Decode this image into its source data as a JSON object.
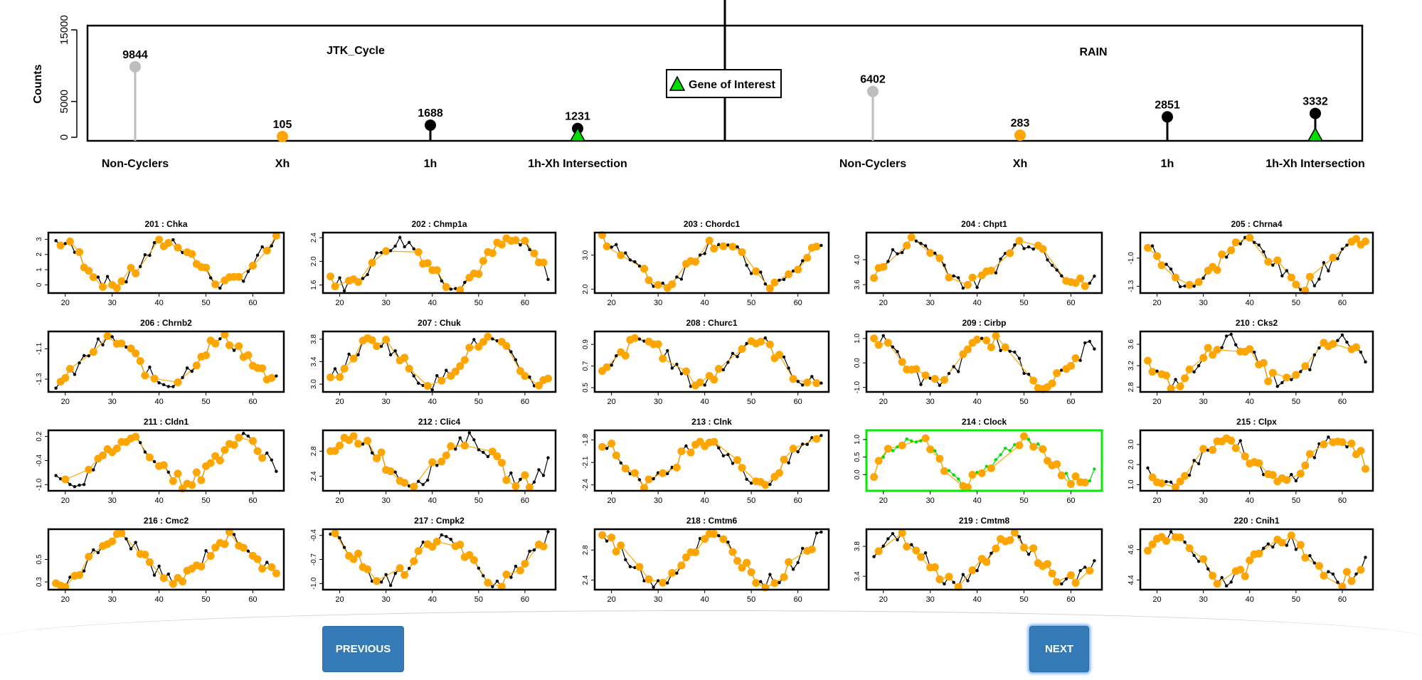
{
  "summary": {
    "ylabel": "Counts",
    "yticks": [
      0,
      5000,
      15000
    ],
    "ymax": 17000,
    "legend_label": "Gene of Interest",
    "panels": [
      {
        "title": "JTK_Cycle",
        "categories": [
          "Non-Cyclers",
          "Xh",
          "1h",
          "1h-Xh Intersection"
        ],
        "values": [
          9844,
          105,
          1688,
          1231
        ],
        "marker_colors": [
          "#bebebe",
          "#ffa500",
          "#000000",
          "#000000"
        ],
        "gene_of_interest_in": "1h-Xh Intersection"
      },
      {
        "title": "RAIN",
        "categories": [
          "Non-Cyclers",
          "Xh",
          "1h",
          "1h-Xh Intersection"
        ],
        "values": [
          6402,
          283,
          2851,
          3332
        ],
        "marker_colors": [
          "#bebebe",
          "#ffa500",
          "#000000",
          "#000000"
        ],
        "gene_of_interest_in": "1h-Xh Intersection"
      }
    ]
  },
  "chart_data": {
    "type": "line",
    "description_of_series": "orange = fitted/cycling points, black = raw expression",
    "x_ticks": [
      20,
      30,
      40,
      50,
      60
    ],
    "x_range": [
      17,
      66
    ],
    "panels": [
      {
        "title": "201 : Chka",
        "yticks": [
          "0",
          "1",
          "2",
          "3"
        ],
        "yrange": [
          -0.4,
          3.3
        ],
        "highlight": false
      },
      {
        "title": "202 : Chmp1a",
        "yticks": [
          "1.6",
          "2.0",
          "2.4"
        ],
        "yrange": [
          1.5,
          2.45
        ],
        "highlight": false
      },
      {
        "title": "203 : Chordc1",
        "yticks": [
          "2.0",
          "3.0"
        ],
        "yrange": [
          1.95,
          3.6
        ],
        "highlight": false
      },
      {
        "title": "204 : Chpt1",
        "yticks": [
          "3.6",
          "4.0"
        ],
        "yrange": [
          3.5,
          4.4
        ],
        "highlight": false
      },
      {
        "title": "205 : Chrna4",
        "yticks": [
          "-1.3",
          "-1.0"
        ],
        "yrange": [
          -1.35,
          -0.75
        ],
        "highlight": false
      },
      {
        "title": "206 : Chrnb2",
        "yticks": [
          "-1.3",
          "-1.1"
        ],
        "yrange": [
          -1.37,
          -1.0
        ],
        "highlight": false
      },
      {
        "title": "207 : Chuk",
        "yticks": [
          "3.0",
          "3.4",
          "3.8"
        ],
        "yrange": [
          2.9,
          3.9
        ],
        "highlight": false
      },
      {
        "title": "208 : Churc1",
        "yticks": [
          "0.5",
          "0.7",
          "0.9"
        ],
        "yrange": [
          0.48,
          1.0
        ],
        "highlight": false
      },
      {
        "title": "209 : Cirbp",
        "yticks": [
          "-1.0",
          "0.0",
          "1.0"
        ],
        "yrange": [
          -1.1,
          1.2
        ],
        "highlight": false
      },
      {
        "title": "210 : Cks2",
        "yticks": [
          "2.8",
          "3.2",
          "3.6"
        ],
        "yrange": [
          2.75,
          3.8
        ],
        "highlight": false
      },
      {
        "title": "211 : Cldn1",
        "yticks": [
          "-1.0",
          "-0.4",
          "0.2"
        ],
        "yrange": [
          -1.1,
          0.3
        ],
        "highlight": false
      },
      {
        "title": "212 : Clic4",
        "yticks": [
          "2.4",
          "2.8"
        ],
        "yrange": [
          2.2,
          3.1
        ],
        "highlight": false
      },
      {
        "title": "213 : Clnk",
        "yticks": [
          "-2.4",
          "-2.1",
          "-1.8"
        ],
        "yrange": [
          -2.45,
          -1.7
        ],
        "highlight": false
      },
      {
        "title": "214 : Clock",
        "yticks": [
          "0.0",
          "0.5",
          "1.0"
        ],
        "yrange": [
          -0.4,
          1.2
        ],
        "highlight": true
      },
      {
        "title": "215 : Clpx",
        "yticks": [
          "1.0",
          "2.0",
          "3.0"
        ],
        "yrange": [
          0.8,
          3.6
        ],
        "highlight": false
      },
      {
        "title": "216 : Cmc2",
        "yticks": [
          "0.3",
          "0.5"
        ],
        "yrange": [
          0.25,
          0.75
        ],
        "highlight": false
      },
      {
        "title": "217 : Cmpk2",
        "yticks": [
          "-1.0",
          "-0.7",
          "-0.4"
        ],
        "yrange": [
          -1.05,
          -0.35
        ],
        "highlight": false
      },
      {
        "title": "218 : Cmtm6",
        "yticks": [
          "2.4",
          "2.8"
        ],
        "yrange": [
          2.3,
          3.05
        ],
        "highlight": false
      },
      {
        "title": "219 : Cmtm8",
        "yticks": [
          "3.4",
          "3.8"
        ],
        "yrange": [
          3.25,
          4.0
        ],
        "highlight": false
      },
      {
        "title": "220 : Cnih1",
        "yticks": [
          "4.4",
          "4.6"
        ],
        "yrange": [
          4.35,
          4.72
        ],
        "highlight": false
      }
    ]
  },
  "buttons": {
    "previous": "PREVIOUS",
    "next": "NEXT"
  },
  "colors": {
    "orange": "#ffa500",
    "grey": "#bebebe",
    "highlight": "#00ee00",
    "button": "#337ab7"
  }
}
